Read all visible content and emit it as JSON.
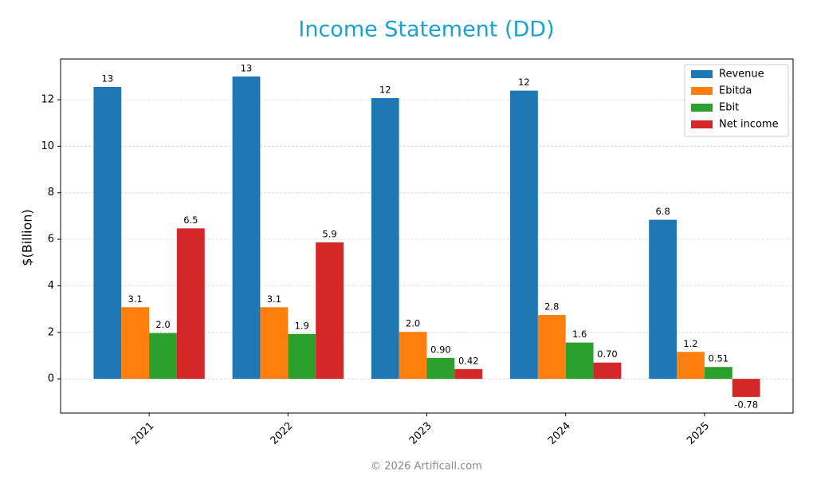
{
  "chart_data": {
    "type": "bar",
    "title": "Income Statement (DD)",
    "y_label": "$(Billion)",
    "footer": "© 2026 Artificall.com",
    "categories": [
      "2021",
      "2022",
      "2023",
      "2024",
      "2025"
    ],
    "series": [
      {
        "name": "Revenue",
        "color": "#1f77b4",
        "values": [
          12.55,
          13.0,
          12.07,
          12.39,
          6.84
        ],
        "value_labels": [
          "13",
          "13",
          "12",
          "12",
          "6.8"
        ]
      },
      {
        "name": "Ebitda",
        "color": "#ff7f0e",
        "values": [
          3.08,
          3.08,
          2.02,
          2.75,
          1.16
        ],
        "value_labels": [
          "3.1",
          "3.1",
          "2.0",
          "2.8",
          "1.2"
        ]
      },
      {
        "name": "Ebit",
        "color": "#2ca02c",
        "values": [
          1.97,
          1.93,
          0.9,
          1.56,
          0.51
        ],
        "value_labels": [
          "2.0",
          "1.9",
          "0.90",
          "1.6",
          "0.51"
        ]
      },
      {
        "name": "Net income",
        "color": "#d62728",
        "values": [
          6.47,
          5.87,
          0.42,
          0.7,
          -0.78
        ],
        "value_labels": [
          "6.5",
          "5.9",
          "0.42",
          "0.70",
          "-0.78"
        ]
      }
    ],
    "ylim": [
      -1.47,
      13.75
    ],
    "yticks": [
      0,
      2,
      4,
      6,
      8,
      10,
      12
    ],
    "grid": true,
    "legend": "upper right"
  }
}
